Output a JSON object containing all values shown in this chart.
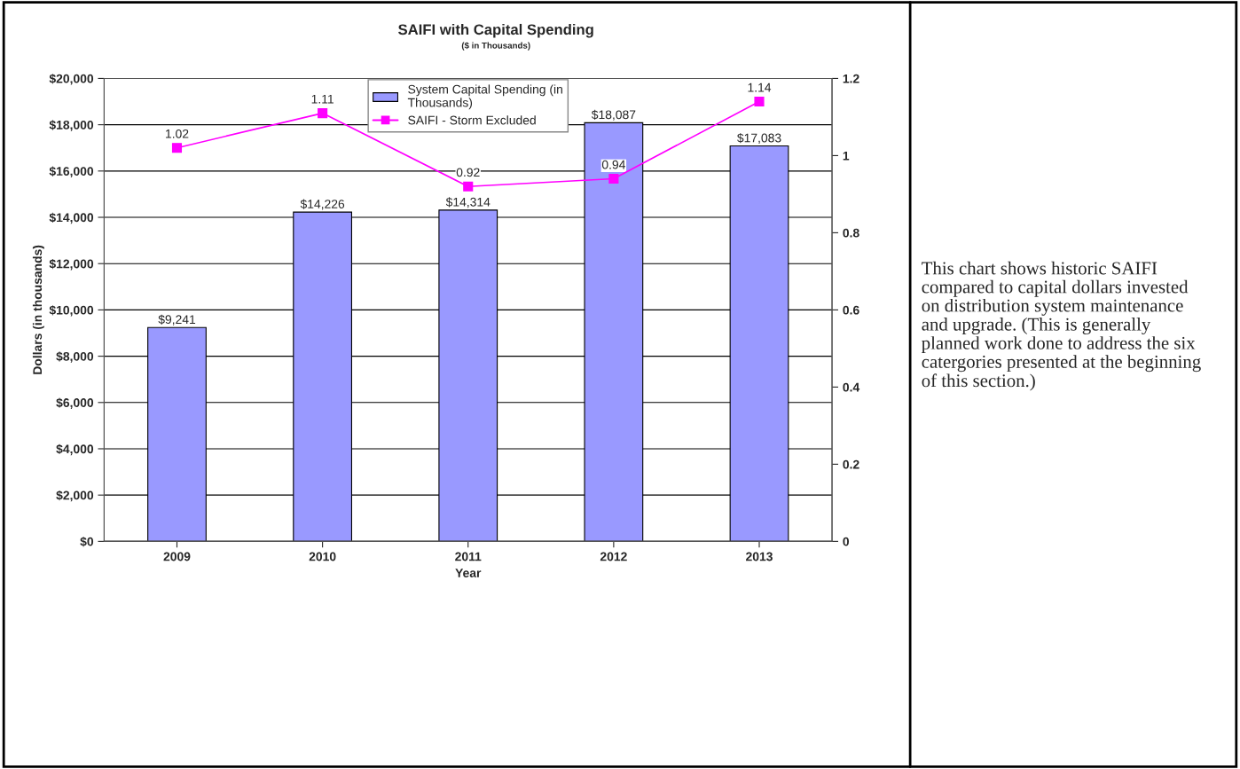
{
  "chart_data": {
    "type": "bar",
    "title": "SAIFI with Capital Spending",
    "subtitle": "($ in Thousands)",
    "xlabel": "Year",
    "ylabel": "Dollars (in thousands)",
    "categories": [
      "2009",
      "2010",
      "2011",
      "2012",
      "2013"
    ],
    "series": [
      {
        "name": "System Capital Spending (in Thousands)",
        "color": "#9999ff",
        "values": [
          9241,
          14226,
          14314,
          18087,
          17083
        ],
        "value_labels": [
          "$9,241",
          "$14,226",
          "$14,314",
          "$18,087",
          "$17,083"
        ]
      },
      {
        "name": "SAIFI - Storm Excluded",
        "type": "line",
        "axis": "y2",
        "color": "#ff00ff",
        "marker": "square",
        "values": [
          1.02,
          1.11,
          0.92,
          0.94,
          1.14
        ],
        "value_labels": [
          "1.02",
          "1.11",
          "0.92",
          "0.94",
          "1.14"
        ]
      }
    ],
    "ylim": [
      0,
      20000
    ],
    "yticks": [
      {
        "value": 0,
        "label": "$0"
      },
      {
        "value": 2000,
        "label": "$2,000"
      },
      {
        "value": 4000,
        "label": "$4,000"
      },
      {
        "value": 6000,
        "label": "$6,000"
      },
      {
        "value": 8000,
        "label": "$8,000"
      },
      {
        "value": 10000,
        "label": "$10,000"
      },
      {
        "value": 12000,
        "label": "$12,000"
      },
      {
        "value": 14000,
        "label": "$14,000"
      },
      {
        "value": 16000,
        "label": "$16,000"
      },
      {
        "value": 18000,
        "label": "$18,000"
      },
      {
        "value": 20000,
        "label": "$20,000"
      }
    ],
    "y2lim": [
      0,
      1.2
    ],
    "y2ticks": [
      0,
      0.2,
      0.4,
      0.6,
      0.8,
      1,
      1.2
    ],
    "grid": "y",
    "legend": "top",
    "annotations": [
      "This chart shows historic SAIFI compared to capital dollars invested on distribution system maintenance and upgrade. (This is generally planned work done to address the six catergories presented at the beginning of this section.)"
    ]
  }
}
